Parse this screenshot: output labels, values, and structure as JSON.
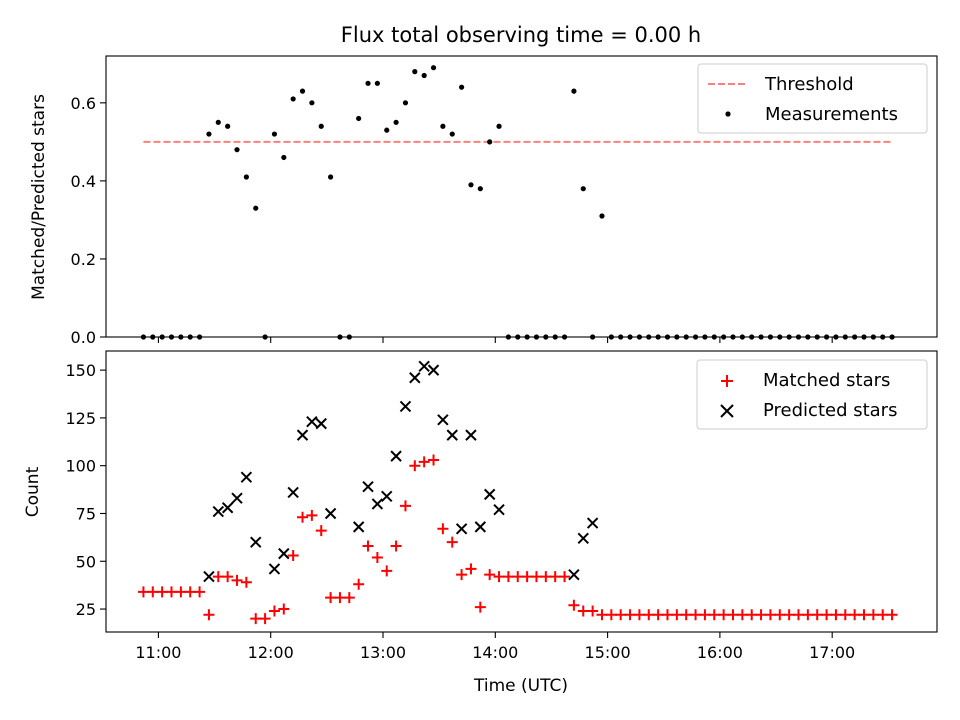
{
  "chart_data": [
    {
      "type": "scatter",
      "title": "Flux total observing time = 0.00 h",
      "xlabel": "",
      "ylabel": "Matched/Predicted stars",
      "xlim": [
        "10:32",
        "17:56"
      ],
      "ylim": [
        0,
        0.72
      ],
      "yticks": [
        0.0,
        0.2,
        0.4,
        0.6
      ],
      "ytick_labels": [
        "0.0",
        "0.2",
        "0.4",
        "0.6"
      ],
      "legend_position": "upper right",
      "series": [
        {
          "name": "Threshold",
          "style": "dashed-line",
          "color": "#ff7f7f",
          "x": [
            "10:52",
            "17:32"
          ],
          "values": [
            0.5,
            0.5
          ]
        },
        {
          "name": "Measurements",
          "style": "dot",
          "color": "#000000",
          "x": [
            "10:52",
            "10:57",
            "11:02",
            "11:07",
            "11:12",
            "11:17",
            "11:22",
            "11:27",
            "11:32",
            "11:37",
            "11:42",
            "11:47",
            "11:52",
            "11:57",
            "12:02",
            "12:07",
            "12:12",
            "12:17",
            "12:22",
            "12:27",
            "12:32",
            "12:37",
            "12:42",
            "12:47",
            "12:52",
            "12:57",
            "13:02",
            "13:07",
            "13:12",
            "13:17",
            "13:22",
            "13:27",
            "13:32",
            "13:37",
            "13:42",
            "13:47",
            "13:52",
            "13:57",
            "14:02",
            "14:07",
            "14:12",
            "14:17",
            "14:22",
            "14:27",
            "14:32",
            "14:37",
            "14:42",
            "14:47",
            "14:52",
            "14:57",
            "15:02",
            "15:07",
            "15:12",
            "15:17",
            "15:22",
            "15:27",
            "15:32",
            "15:37",
            "15:42",
            "15:47",
            "15:52",
            "15:57",
            "16:02",
            "16:07",
            "16:12",
            "16:17",
            "16:22",
            "16:27",
            "16:32",
            "16:37",
            "16:42",
            "16:47",
            "16:52",
            "16:57",
            "17:02",
            "17:07",
            "17:12",
            "17:17",
            "17:22",
            "17:27",
            "17:32"
          ],
          "values": [
            0,
            0,
            0,
            0,
            0,
            0,
            0,
            0.52,
            0.55,
            0.54,
            0.48,
            0.41,
            0.33,
            0,
            0.52,
            0.46,
            0.61,
            0.63,
            0.6,
            0.54,
            0.41,
            0,
            0,
            0.56,
            0.65,
            0.65,
            0.53,
            0.55,
            0.6,
            0.68,
            0.67,
            0.69,
            0.54,
            0.52,
            0.64,
            0.39,
            0.38,
            0.5,
            0.54,
            0,
            0,
            0,
            0,
            0,
            0,
            0,
            0.63,
            0.38,
            0,
            0.31,
            0,
            0,
            0,
            0,
            0,
            0,
            0,
            0,
            0,
            0,
            0,
            0,
            0,
            0,
            0,
            0,
            0,
            0,
            0,
            0,
            0,
            0,
            0,
            0,
            0,
            0,
            0,
            0,
            0,
            0,
            0
          ]
        }
      ]
    },
    {
      "type": "scatter",
      "title": "",
      "xlabel": "Time (UTC)",
      "ylabel": "Count",
      "xlim": [
        "10:32",
        "17:56"
      ],
      "ylim": [
        13,
        160
      ],
      "yticks": [
        25,
        50,
        75,
        100,
        125,
        150
      ],
      "ytick_labels": [
        "25",
        "50",
        "75",
        "100",
        "125",
        "150"
      ],
      "xticks": [
        "11:00",
        "12:00",
        "13:00",
        "14:00",
        "15:00",
        "16:00",
        "17:00"
      ],
      "legend_position": "upper right",
      "series": [
        {
          "name": "Matched stars",
          "marker": "plus",
          "color": "#ff0000",
          "x": [
            "10:52",
            "10:57",
            "11:02",
            "11:07",
            "11:12",
            "11:17",
            "11:22",
            "11:27",
            "11:32",
            "11:37",
            "11:42",
            "11:47",
            "11:52",
            "11:57",
            "12:02",
            "12:07",
            "12:12",
            "12:17",
            "12:22",
            "12:27",
            "12:32",
            "12:37",
            "12:42",
            "12:47",
            "12:52",
            "12:57",
            "13:02",
            "13:07",
            "13:12",
            "13:17",
            "13:22",
            "13:27",
            "13:32",
            "13:37",
            "13:42",
            "13:47",
            "13:52",
            "13:57",
            "14:02",
            "14:07",
            "14:12",
            "14:17",
            "14:22",
            "14:27",
            "14:32",
            "14:37",
            "14:42",
            "14:47",
            "14:52",
            "14:57",
            "15:02",
            "15:07",
            "15:12",
            "15:17",
            "15:22",
            "15:27",
            "15:32",
            "15:37",
            "15:42",
            "15:47",
            "15:52",
            "15:57",
            "16:02",
            "16:07",
            "16:12",
            "16:17",
            "16:22",
            "16:27",
            "16:32",
            "16:37",
            "16:42",
            "16:47",
            "16:52",
            "16:57",
            "17:02",
            "17:07",
            "17:12",
            "17:17",
            "17:22",
            "17:27",
            "17:32"
          ],
          "values": [
            34,
            34,
            34,
            34,
            34,
            34,
            34,
            22,
            42,
            42,
            40,
            39,
            20,
            20,
            24,
            25,
            53,
            73,
            74,
            66,
            31,
            31,
            31,
            38,
            58,
            52,
            45,
            58,
            79,
            100,
            102,
            103,
            67,
            60,
            43,
            46,
            26,
            43,
            42,
            42,
            42,
            42,
            42,
            42,
            42,
            42,
            27,
            24,
            24,
            22,
            22,
            22,
            22,
            22,
            22,
            22,
            22,
            22,
            22,
            22,
            22,
            22,
            22,
            22,
            22,
            22,
            22,
            22,
            22,
            22,
            22,
            22,
            22,
            22,
            22,
            22,
            22,
            22,
            22,
            22,
            22
          ]
        },
        {
          "name": "Predicted stars",
          "marker": "x",
          "color": "#000000",
          "x": [
            "11:27",
            "11:32",
            "11:37",
            "11:42",
            "11:47",
            "11:52",
            "12:02",
            "12:07",
            "12:12",
            "12:17",
            "12:22",
            "12:27",
            "12:32",
            "12:47",
            "12:52",
            "12:57",
            "13:02",
            "13:07",
            "13:12",
            "13:17",
            "13:22",
            "13:27",
            "13:32",
            "13:37",
            "13:42",
            "13:47",
            "13:52",
            "13:57",
            "14:02",
            "14:42",
            "14:47",
            "14:52"
          ],
          "values": [
            42,
            76,
            78,
            83,
            94,
            60,
            46,
            54,
            86,
            116,
            123,
            122,
            75,
            68,
            89,
            80,
            84,
            105,
            131,
            146,
            152,
            150,
            124,
            116,
            67,
            116,
            68,
            85,
            77,
            43,
            62,
            70
          ]
        }
      ]
    }
  ]
}
